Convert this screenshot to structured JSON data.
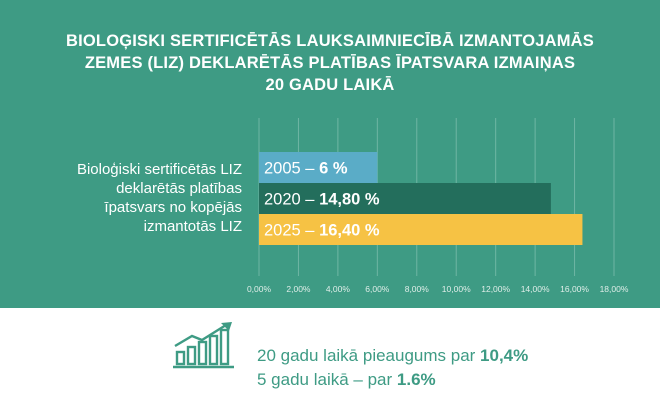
{
  "title_lines": [
    "BIOLOĢISKI SERTIFICĒTĀS LAUKSAIMNIECĪBĀ IZMANTOJAMĀS",
    "ZEMES (LIZ) DEKLARĒTĀS PLATĪBAS ĪPATSVARA IZMAIŅAS",
    "20 GADU LAIKĀ"
  ],
  "category_label_lines": [
    "Bioloģiski sertificētās LIZ",
    "deklarētās platības",
    "īpatsvars no kopējās",
    "izmantotās LIZ"
  ],
  "chart_data": {
    "type": "bar",
    "orientation": "horizontal",
    "categories": [
      "Bioloģiski sertificētās LIZ deklarētās platības īpatsvars no kopējās izmantotās LIZ"
    ],
    "series": [
      {
        "name": "2005",
        "value": 6.0,
        "label_prefix": "2005 – ",
        "label_value": "6 %",
        "color": "#5aacc7"
      },
      {
        "name": "2020",
        "value": 14.8,
        "label_prefix": "2020 – ",
        "label_value": "14,80 %",
        "color": "#236e5c"
      },
      {
        "name": "2025",
        "value": 16.4,
        "label_prefix": "2025 – ",
        "label_value": "16,40 %",
        "color": "#f6c244"
      }
    ],
    "xlim": [
      0,
      18
    ],
    "x_ticks": [
      "0,00%",
      "2,00%",
      "4,00%",
      "6,00%",
      "8,00%",
      "10,00%",
      "12,00%",
      "14,00%",
      "16,00%",
      "18,00%"
    ],
    "grid": true
  },
  "stats": {
    "line1_text": "20 gadu laikā pieaugums par ",
    "line1_value": "10,4%",
    "line2_text": "5 gadu laikā – par ",
    "line2_value": "1.6%"
  },
  "icon": "growth-chart-icon",
  "colors": {
    "background_top": "#3e9b84",
    "background_bottom": "#ffffff",
    "text_accent": "#3e9b84",
    "gridline": "#6fb6a4"
  }
}
